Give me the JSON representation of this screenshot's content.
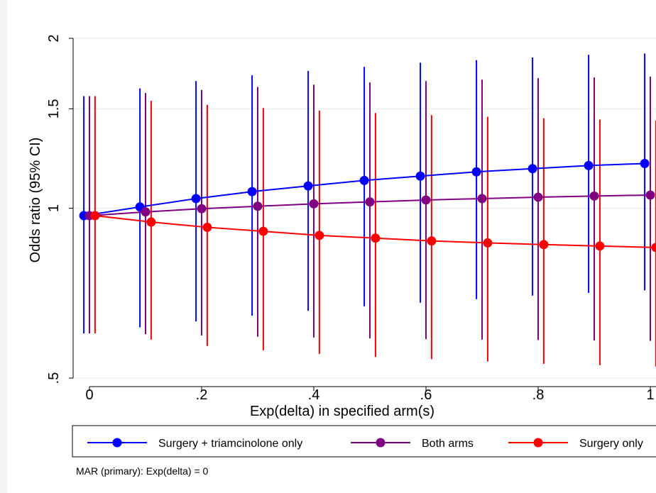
{
  "chart_data": {
    "type": "line",
    "xlabel": "Exp(delta) in specified arm(s)",
    "ylabel": "Odds ratio (95% CI)",
    "x_ticks": [
      {
        "value": 0,
        "label": "0"
      },
      {
        "value": 0.2,
        "label": ".2"
      },
      {
        "value": 0.4,
        "label": ".4"
      },
      {
        "value": 0.6,
        "label": ".6"
      },
      {
        "value": 0.8,
        "label": ".8"
      },
      {
        "value": 1,
        "label": "1"
      }
    ],
    "y_ticks": [
      {
        "value": 0.5,
        "label": ".5"
      },
      {
        "value": 1,
        "label": "1"
      },
      {
        "value": 1.5,
        "label": "1.5"
      },
      {
        "value": 2,
        "label": "2"
      }
    ],
    "y_scale": "log",
    "xlim": [
      -0.03,
      1.0
    ],
    "ylim": [
      0.5,
      2
    ],
    "grid": "horizontal",
    "legend_position": "bottom",
    "x": [
      0,
      0.1,
      0.2,
      0.3,
      0.4,
      0.5,
      0.6,
      0.7,
      0.8,
      0.9,
      1.0
    ],
    "series": [
      {
        "name": "Surgery + triamcinolone only",
        "color": "#0000ff",
        "values": [
          0.97,
          1.005,
          1.04,
          1.07,
          1.095,
          1.12,
          1.14,
          1.16,
          1.175,
          1.19,
          1.2
        ],
        "ci_low": [
          0.6,
          0.615,
          0.63,
          0.645,
          0.658,
          0.67,
          0.68,
          0.69,
          0.7,
          0.708,
          0.715
        ],
        "ci_high": [
          1.58,
          1.63,
          1.68,
          1.72,
          1.75,
          1.78,
          1.81,
          1.83,
          1.85,
          1.87,
          1.88
        ]
      },
      {
        "name": "Both arms",
        "color": "#800080",
        "values": [
          0.97,
          0.985,
          0.998,
          1.008,
          1.018,
          1.026,
          1.034,
          1.04,
          1.046,
          1.051,
          1.055
        ],
        "ci_low": [
          0.6,
          0.598,
          0.595,
          0.592,
          0.59,
          0.588,
          0.586,
          0.585,
          0.584,
          0.583,
          0.582
        ],
        "ci_high": [
          1.58,
          1.6,
          1.62,
          1.64,
          1.655,
          1.67,
          1.68,
          1.69,
          1.7,
          1.705,
          1.71
        ]
      },
      {
        "name": "Surgery only",
        "color": "#ff0000",
        "values": [
          0.97,
          0.945,
          0.925,
          0.91,
          0.895,
          0.885,
          0.875,
          0.868,
          0.862,
          0.857,
          0.852
        ],
        "ci_low": [
          0.6,
          0.585,
          0.57,
          0.56,
          0.552,
          0.545,
          0.54,
          0.535,
          0.53,
          0.527,
          0.524
        ],
        "ci_high": [
          1.58,
          1.55,
          1.525,
          1.505,
          1.49,
          1.475,
          1.462,
          1.452,
          1.443,
          1.436,
          1.43
        ]
      }
    ],
    "note": "MAR (primary): Exp(delta) = 0"
  }
}
